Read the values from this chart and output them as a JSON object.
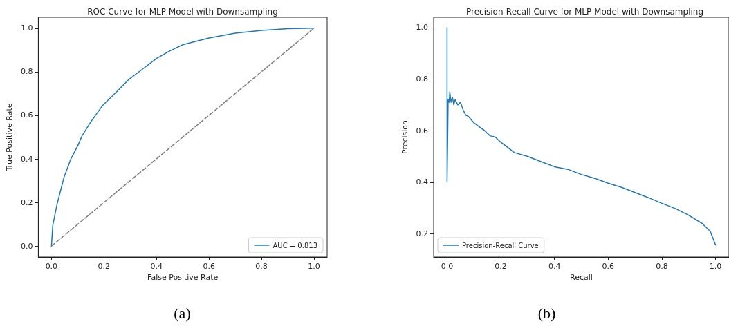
{
  "chart_data": [
    {
      "type": "line",
      "title": "ROC Curve for MLP Model with Downsampling",
      "xlabel": "False Positive Rate",
      "ylabel": "True Positive Rate",
      "annotations": [
        "(a)"
      ],
      "xlim": [
        -0.05,
        1.05
      ],
      "ylim": [
        -0.05,
        1.05
      ],
      "xticks": [
        {
          "value": 0,
          "label": "0.0"
        },
        {
          "value": 0.2,
          "label": "0.2"
        },
        {
          "value": 0.4,
          "label": "0.4"
        },
        {
          "value": 0.6,
          "label": "0.6"
        },
        {
          "value": 0.8,
          "label": "0.8"
        },
        {
          "value": 1,
          "label": "1.0"
        }
      ],
      "yticks": [
        {
          "value": 0,
          "label": "0.0"
        },
        {
          "value": 0.2,
          "label": "0.2"
        },
        {
          "value": 0.4,
          "label": "0.4"
        },
        {
          "value": 0.6,
          "label": "0.6"
        },
        {
          "value": 0.8,
          "label": "0.8"
        },
        {
          "value": 1,
          "label": "1.0"
        }
      ],
      "grid": false,
      "legend": "bottom right",
      "marker": "none",
      "series": [
        {
          "name": "AUC = 0.813",
          "color": "#1f77b4",
          "line_style": "solid",
          "x": [
            0,
            0.005,
            0.021,
            0.048,
            0.074,
            0.1,
            0.117,
            0.15,
            0.194,
            0.25,
            0.296,
            0.348,
            0.4,
            0.45,
            0.502,
            0.6,
            0.7,
            0.8,
            0.9,
            1
          ],
          "values": [
            0,
            0.094,
            0.19,
            0.316,
            0.4,
            0.46,
            0.507,
            0.57,
            0.644,
            0.71,
            0.766,
            0.813,
            0.861,
            0.895,
            0.925,
            0.955,
            0.977,
            0.99,
            0.998,
            1
          ]
        },
        {
          "color": "#808080",
          "line_style": "dashed",
          "x": [
            0,
            1
          ],
          "values": [
            0,
            1
          ]
        }
      ]
    },
    {
      "type": "line",
      "title": "Precision-Recall Curve for MLP Model with Downsampling",
      "xlabel": "Recall",
      "ylabel": "Precision",
      "annotations": [
        "(b)"
      ],
      "xlim": [
        -0.05,
        1.05
      ],
      "ylim": [
        0.11,
        1.04
      ],
      "xticks": [
        {
          "value": 0,
          "label": "0.0"
        },
        {
          "value": 0.2,
          "label": "0.2"
        },
        {
          "value": 0.4,
          "label": "0.4"
        },
        {
          "value": 0.6,
          "label": "0.6"
        },
        {
          "value": 0.8,
          "label": "0.8"
        },
        {
          "value": 1,
          "label": "1.0"
        }
      ],
      "yticks": [
        {
          "value": 0.2,
          "label": "0.2"
        },
        {
          "value": 0.4,
          "label": "0.4"
        },
        {
          "value": 0.6,
          "label": "0.6"
        },
        {
          "value": 0.8,
          "label": "0.8"
        },
        {
          "value": 1,
          "label": "1.0"
        }
      ],
      "grid": false,
      "legend": "bottom left",
      "marker": "none",
      "series": [
        {
          "name": "Precision-Recall Curve",
          "color": "#1f77b4",
          "line_style": "solid",
          "x": [
            0,
            0,
            0.002,
            0.004,
            0.008,
            0.01,
            0.015,
            0.02,
            0.025,
            0.03,
            0.04,
            0.05,
            0.06,
            0.07,
            0.08,
            0.1,
            0.12,
            0.14,
            0.16,
            0.18,
            0.2,
            0.22,
            0.25,
            0.3,
            0.35,
            0.4,
            0.45,
            0.5,
            0.55,
            0.6,
            0.65,
            0.7,
            0.75,
            0.8,
            0.85,
            0.9,
            0.95,
            0.98,
            1
          ],
          "values": [
            1.0,
            0.4,
            0.55,
            0.72,
            0.71,
            0.75,
            0.71,
            0.73,
            0.7,
            0.72,
            0.7,
            0.71,
            0.68,
            0.66,
            0.655,
            0.63,
            0.615,
            0.6,
            0.58,
            0.575,
            0.555,
            0.54,
            0.515,
            0.5,
            0.48,
            0.46,
            0.45,
            0.43,
            0.415,
            0.396,
            0.38,
            0.36,
            0.34,
            0.318,
            0.298,
            0.272,
            0.24,
            0.21,
            0.157
          ]
        }
      ]
    }
  ]
}
